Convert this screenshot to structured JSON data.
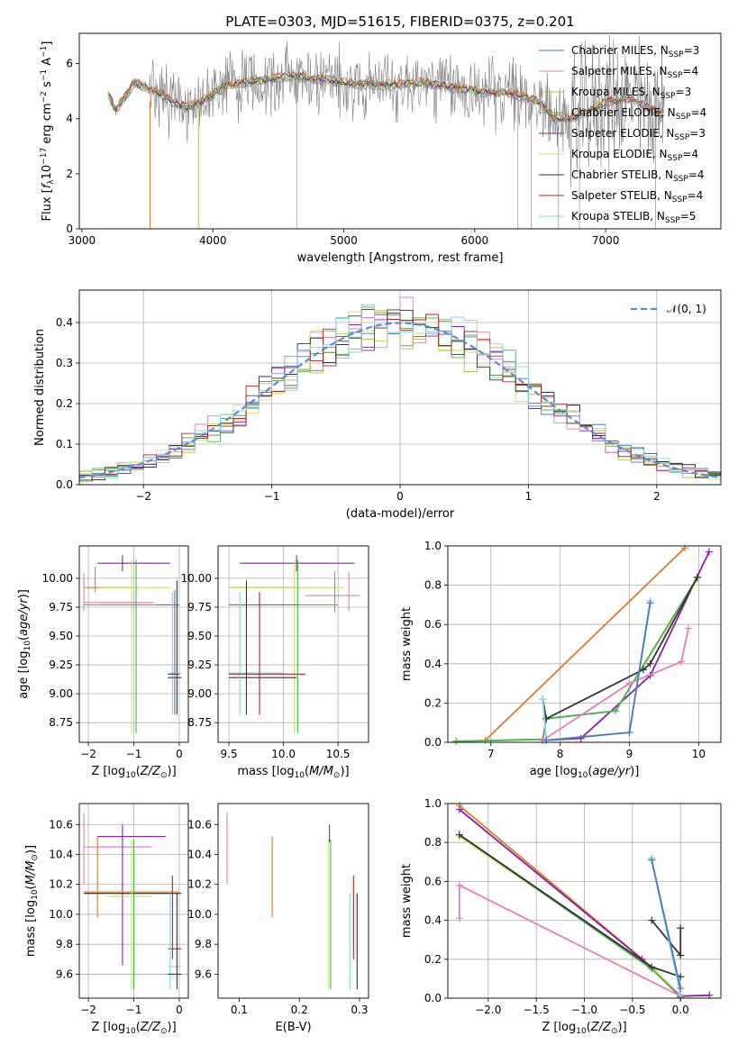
{
  "title": "PLATE=0303, MJD=51615, FIBERID=0375, z=0.201",
  "colors": {
    "spectrum": "#808080",
    "gaussian": "#5b8ad8",
    "series": [
      "#4a7ab5",
      "#e37ec0",
      "#b9bd3a",
      "#4caf50",
      "#8b1fa8",
      "#c5e85e",
      "#333333",
      "#b22222",
      "#7fd6e5",
      "#e07b2a"
    ]
  },
  "legend": {
    "entries": [
      "Chabrier MILES, N_SSP=3",
      "Salpeter MILES, N_SSP=4",
      "Kroupa MILES, N_SSP=3",
      "Chabrier ELODIE, N_SSP=4",
      "Salpeter ELODIE, N_SSP=3",
      "Kroupa ELODIE, N_SSP=4",
      "Chabrier STELIB, N_SSP=4",
      "Salpeter STELIB, N_SSP=4",
      "Kroupa STELIB, N_SSP=5"
    ]
  },
  "chart_data": [
    {
      "type": "line",
      "name": "spectrum",
      "xlabel": "wavelength [Angstrom, rest frame]",
      "ylabel": "Flux [f_λ10^-17 erg cm^-2 s^-1 A^-1]",
      "xlim": [
        2980,
        7880
      ],
      "ylim": [
        0,
        7.1
      ],
      "xticks": [
        3000,
        4000,
        5000,
        6000,
        7000
      ],
      "yticks": [
        0,
        2,
        4,
        6
      ],
      "continuum": {
        "x": [
          3200,
          3260,
          3400,
          3600,
          3700,
          3800,
          3950,
          4100,
          4300,
          4600,
          5000,
          5300,
          5600,
          6000,
          6300,
          6500,
          6600,
          6750,
          7000,
          7200,
          7400
        ],
        "y": [
          4.9,
          4.3,
          5.3,
          4.9,
          4.6,
          4.4,
          4.7,
          5.2,
          5.35,
          5.55,
          5.3,
          5.2,
          5.3,
          5.0,
          4.9,
          4.6,
          4.0,
          4.0,
          4.6,
          4.7,
          4.2
        ]
      },
      "grid": false
    },
    {
      "type": "line",
      "name": "residual-histogram",
      "xlabel": "(data-model)/error",
      "ylabel": "Normed distribution",
      "xlim": [
        -2.5,
        2.5
      ],
      "ylim": [
        0,
        0.48
      ],
      "xticks": [
        -2,
        -1,
        0,
        1,
        2
      ],
      "yticks": [
        0.0,
        0.1,
        0.2,
        0.3,
        0.4
      ],
      "legend_label": "N(0,1)",
      "bin_width": 0.1,
      "grid": true
    },
    {
      "type": "scatter",
      "name": "age-vs-Z",
      "xlabel": "Z [log10(Z/Z⊙)]",
      "ylabel": "age [log10(age/yr)]",
      "xlim": [
        -2.2,
        0.2
      ],
      "ylim": [
        8.58,
        10.28
      ],
      "xticks": [
        -2,
        -1,
        0
      ],
      "yticks": [
        8.75,
        9.0,
        9.25,
        9.5,
        9.75,
        10.0
      ],
      "segments": [
        {
          "c": 9,
          "x1": -1.85,
          "x2": -1.85,
          "y1": 9.88,
          "y2": 10.1
        },
        {
          "c": 9,
          "x1": -2.1,
          "x2": -1.0,
          "y1": 9.92,
          "y2": 9.92
        },
        {
          "c": 4,
          "x1": -1.8,
          "x2": -0.2,
          "y1": 10.13,
          "y2": 10.13
        },
        {
          "c": 4,
          "x1": -1.25,
          "x2": -1.25,
          "y1": 10.06,
          "y2": 10.2
        },
        {
          "c": 5,
          "x1": -1.75,
          "x2": -0.2,
          "y1": 9.92,
          "y2": 9.92
        },
        {
          "c": 5,
          "x1": -1.05,
          "x2": -1.05,
          "y1": 8.66,
          "y2": 10.16
        },
        {
          "c": 1,
          "x1": -2.1,
          "x2": -0.55,
          "y1": 9.79,
          "y2": 9.79
        },
        {
          "c": 1,
          "x1": -2.1,
          "x2": -2.1,
          "y1": 9.72,
          "y2": 10.05
        },
        {
          "c": 0,
          "x1": -1.75,
          "x2": 0.0,
          "y1": 9.77,
          "y2": 9.77
        },
        {
          "c": 9,
          "x1": -2.1,
          "x2": -0.5,
          "y1": 9.77,
          "y2": 9.77
        },
        {
          "c": 3,
          "x1": -0.95,
          "x2": -0.95,
          "y1": 8.66,
          "y2": 10.16
        },
        {
          "c": 6,
          "x1": -0.05,
          "x2": -0.05,
          "y1": 8.82,
          "y2": 9.98
        },
        {
          "c": 8,
          "x1": -0.2,
          "x2": 0.05,
          "y1": 9.18,
          "y2": 9.18
        },
        {
          "c": 8,
          "x1": -0.15,
          "x2": -0.15,
          "y1": 8.82,
          "y2": 9.88
        },
        {
          "c": 6,
          "x1": -0.25,
          "x2": 0.05,
          "y1": 9.14,
          "y2": 9.14
        },
        {
          "c": 6,
          "x1": -0.25,
          "x2": 0.0,
          "y1": 9.17,
          "y2": 9.17
        },
        {
          "c": 0,
          "x1": -0.1,
          "x2": -0.1,
          "y1": 8.82,
          "y2": 9.9
        }
      ],
      "grid": true
    },
    {
      "type": "scatter",
      "name": "age-vs-mass",
      "xlabel": "mass [log10(M/M⊙)]",
      "ylabel": "",
      "xlim": [
        9.4,
        10.78
      ],
      "ylim": [
        8.58,
        10.28
      ],
      "xticks": [
        9.5,
        10.0,
        10.5
      ],
      "yticks": [
        8.75,
        9.0,
        9.25,
        9.5,
        9.75,
        10.0
      ],
      "segments": [
        {
          "c": 4,
          "x1": 9.6,
          "x2": 10.65,
          "y1": 10.13,
          "y2": 10.13
        },
        {
          "c": 4,
          "x1": 10.12,
          "x2": 10.12,
          "y1": 10.06,
          "y2": 10.2
        },
        {
          "c": 9,
          "x1": 9.5,
          "x2": 10.15,
          "y1": 9.92,
          "y2": 9.92
        },
        {
          "c": 5,
          "x1": 9.5,
          "x2": 10.55,
          "y1": 9.92,
          "y2": 9.92
        },
        {
          "c": 5,
          "x1": 10.1,
          "x2": 10.1,
          "y1": 8.66,
          "y2": 10.16
        },
        {
          "c": 3,
          "x1": 10.13,
          "x2": 10.13,
          "y1": 8.66,
          "y2": 10.16
        },
        {
          "c": 1,
          "x1": 10.2,
          "x2": 10.7,
          "y1": 9.85,
          "y2": 9.85
        },
        {
          "c": 1,
          "x1": 10.6,
          "x2": 10.6,
          "y1": 9.72,
          "y2": 10.05
        },
        {
          "c": 9,
          "x1": 10.15,
          "x2": 10.5,
          "y1": 9.77,
          "y2": 9.77
        },
        {
          "c": 9,
          "x1": 10.47,
          "x2": 10.47,
          "y1": 9.7,
          "y2": 10.06
        },
        {
          "c": 0,
          "x1": 9.5,
          "x2": 10.15,
          "y1": 9.77,
          "y2": 9.77
        },
        {
          "c": 6,
          "x1": 9.5,
          "x2": 10.12,
          "y1": 9.14,
          "y2": 9.14
        },
        {
          "c": 8,
          "x1": 9.5,
          "x2": 10.0,
          "y1": 9.18,
          "y2": 9.18
        },
        {
          "c": 8,
          "x1": 9.6,
          "x2": 9.6,
          "y1": 8.82,
          "y2": 9.88
        },
        {
          "c": 6,
          "x1": 9.66,
          "x2": 9.66,
          "y1": 8.82,
          "y2": 9.98
        },
        {
          "c": 7,
          "x1": 9.78,
          "x2": 9.78,
          "y1": 8.82,
          "y2": 9.88
        },
        {
          "c": 7,
          "x1": 9.5,
          "x2": 10.2,
          "y1": 9.17,
          "y2": 9.17
        }
      ],
      "grid": true
    },
    {
      "type": "line",
      "name": "mass-weight-vs-age",
      "xlabel": "age [log10(age/yr)]",
      "ylabel": "mass weight",
      "xlim": [
        6.38,
        10.32
      ],
      "ylim": [
        0,
        1.0
      ],
      "xticks": [
        7,
        8,
        9,
        10
      ],
      "yticks": [
        0.0,
        0.2,
        0.4,
        0.6,
        0.8,
        1.0
      ],
      "series": [
        {
          "c": 9,
          "x": [
            6.92,
            9.8
          ],
          "y": [
            0.01,
            0.99
          ]
        },
        {
          "c": 4,
          "x": [
            7.75,
            8.3,
            9.3,
            10.15
          ],
          "y": [
            0.01,
            0.02,
            0.34,
            0.97
          ]
        },
        {
          "c": 5,
          "x": [
            6.5,
            7.75,
            7.8,
            8.8,
            9.98
          ],
          "y": [
            0.005,
            0.015,
            0.12,
            0.16,
            0.83
          ]
        },
        {
          "c": 3,
          "x": [
            6.5,
            7.75,
            7.8,
            8.8,
            9.98
          ],
          "y": [
            0.005,
            0.015,
            0.12,
            0.16,
            0.84
          ]
        },
        {
          "c": 6,
          "x": [
            7.75,
            7.8,
            9.2,
            9.3,
            9.98
          ],
          "y": [
            0.22,
            0.12,
            0.37,
            0.4,
            0.84
          ]
        },
        {
          "c": 1,
          "x": [
            7.75,
            9.0,
            9.75,
            9.85
          ],
          "y": [
            0.01,
            0.3,
            0.41,
            0.58
          ]
        },
        {
          "c": 8,
          "x": [
            7.75,
            7.8,
            9.0,
            9.3
          ],
          "y": [
            0.22,
            0.01,
            0.05,
            0.72
          ]
        },
        {
          "c": 0,
          "x": [
            7.8,
            9.0,
            9.3
          ],
          "y": [
            0.01,
            0.05,
            0.71
          ]
        }
      ],
      "grid": true
    },
    {
      "type": "scatter",
      "name": "mass-vs-Z",
      "xlabel": "Z [log10(Z/Z⊙)]",
      "ylabel": "mass [log10(M/M⊙)]",
      "xlim": [
        -2.2,
        0.2
      ],
      "ylim": [
        9.44,
        10.74
      ],
      "xticks": [
        -2,
        -1,
        0
      ],
      "yticks": [
        9.6,
        9.8,
        10.0,
        10.2,
        10.4,
        10.6
      ],
      "segments": [
        {
          "c": 1,
          "x1": -2.1,
          "x2": -2.1,
          "y1": 10.2,
          "y2": 10.68
        },
        {
          "c": 1,
          "x1": -2.1,
          "x2": -0.6,
          "y1": 10.45,
          "y2": 10.45
        },
        {
          "c": 4,
          "x1": -1.8,
          "x2": -0.3,
          "y1": 10.52,
          "y2": 10.52
        },
        {
          "c": 4,
          "x1": -1.25,
          "x2": -1.25,
          "y1": 9.66,
          "y2": 10.6
        },
        {
          "c": 9,
          "x1": -2.1,
          "x2": 0.0,
          "y1": 10.15,
          "y2": 10.15
        },
        {
          "c": 9,
          "x1": -1.8,
          "x2": -1.8,
          "y1": 9.98,
          "y2": 10.52
        },
        {
          "c": 0,
          "x1": -2.1,
          "x2": 0.0,
          "y1": 10.14,
          "y2": 10.14
        },
        {
          "c": 6,
          "x1": -2.1,
          "x2": 0.05,
          "y1": 10.14,
          "y2": 10.14
        },
        {
          "c": 5,
          "x1": -1.6,
          "x2": -0.6,
          "y1": 10.12,
          "y2": 10.12
        },
        {
          "c": 5,
          "x1": -1.05,
          "x2": -1.05,
          "y1": 9.5,
          "y2": 10.5
        },
        {
          "c": 3,
          "x1": -1.0,
          "x2": -1.0,
          "y1": 9.5,
          "y2": 10.5
        },
        {
          "c": 7,
          "x1": -0.25,
          "x2": 0.05,
          "y1": 9.77,
          "y2": 9.77
        },
        {
          "c": 7,
          "x1": -0.15,
          "x2": -0.15,
          "y1": 9.7,
          "y2": 10.26
        },
        {
          "c": 8,
          "x1": -0.25,
          "x2": 0.05,
          "y1": 9.65,
          "y2": 9.65
        },
        {
          "c": 8,
          "x1": -0.2,
          "x2": -0.2,
          "y1": 9.5,
          "y2": 10.14
        },
        {
          "c": 6,
          "x1": -0.25,
          "x2": 0.05,
          "y1": 9.6,
          "y2": 9.6
        },
        {
          "c": 6,
          "x1": -0.05,
          "x2": -0.05,
          "y1": 9.5,
          "y2": 10.14
        }
      ],
      "grid": true
    },
    {
      "type": "scatter",
      "name": "mass-vs-ebv",
      "xlabel": "E(B-V)",
      "ylabel": "",
      "xlim": [
        0.065,
        0.315
      ],
      "ylim": [
        9.44,
        10.74
      ],
      "xticks": [
        0.1,
        0.2,
        0.3
      ],
      "yticks": [
        9.6,
        9.8,
        10.0,
        10.2,
        10.4,
        10.6
      ],
      "segments": [
        {
          "c": 1,
          "x1": 0.08,
          "x2": 0.08,
          "y1": 10.2,
          "y2": 10.68
        },
        {
          "c": 9,
          "x1": 0.155,
          "x2": 0.155,
          "y1": 9.98,
          "y2": 10.52
        },
        {
          "c": 4,
          "x1": 0.25,
          "x2": 0.25,
          "y1": 10.48,
          "y2": 10.6
        },
        {
          "c": 5,
          "x1": 0.248,
          "x2": 0.248,
          "y1": 9.5,
          "y2": 10.5
        },
        {
          "c": 3,
          "x1": 0.252,
          "x2": 0.252,
          "y1": 9.5,
          "y2": 10.5
        },
        {
          "c": 7,
          "x1": 0.29,
          "x2": 0.29,
          "y1": 9.7,
          "y2": 10.26
        },
        {
          "c": 8,
          "x1": 0.284,
          "x2": 0.284,
          "y1": 9.5,
          "y2": 10.14
        },
        {
          "c": 6,
          "x1": 0.296,
          "x2": 0.296,
          "y1": 9.5,
          "y2": 10.14
        }
      ],
      "grid": false
    },
    {
      "type": "line",
      "name": "mass-weight-vs-Z",
      "xlabel": "Z [log10(Z/Z⊙)]",
      "ylabel": "mass weight",
      "xlim": [
        -2.42,
        0.42
      ],
      "ylim": [
        0,
        1.0
      ],
      "xticks": [
        -2.0,
        -1.5,
        -1.0,
        -0.5,
        0.0
      ],
      "yticks": [
        0.0,
        0.2,
        0.4,
        0.6,
        0.8,
        1.0
      ],
      "series": [
        {
          "c": 9,
          "x": [
            -2.3,
            -0.3,
            0.0
          ],
          "y": [
            0.99,
            0.16,
            0.01
          ]
        },
        {
          "c": 4,
          "x": [
            -2.3,
            -0.4,
            0.0,
            0.3
          ],
          "y": [
            0.97,
            0.2,
            0.01,
            0.015
          ]
        },
        {
          "c": 5,
          "x": [
            -2.3,
            -0.3,
            0.0
          ],
          "y": [
            0.83,
            0.16,
            0.005
          ]
        },
        {
          "c": 3,
          "x": [
            -2.3,
            -0.3,
            0.0
          ],
          "y": [
            0.84,
            0.15,
            0.005
          ]
        },
        {
          "c": 6,
          "x": [
            -2.3,
            -0.3,
            0.0
          ],
          "y": [
            0.84,
            0.16,
            0.11
          ]
        },
        {
          "c": 1,
          "x": [
            -2.3,
            -2.3,
            0.0
          ],
          "y": [
            0.41,
            0.58,
            0.01
          ]
        },
        {
          "c": 6,
          "x": [
            -0.3,
            0.0,
            0.0
          ],
          "y": [
            0.4,
            0.22,
            0.36
          ]
        },
        {
          "c": 8,
          "x": [
            -0.3,
            -0.3,
            0.0
          ],
          "y": [
            0.72,
            0.71,
            0.02
          ]
        },
        {
          "c": 0,
          "x": [
            -0.3,
            0.0
          ],
          "y": [
            0.71,
            0.05
          ]
        }
      ],
      "grid": true
    }
  ]
}
